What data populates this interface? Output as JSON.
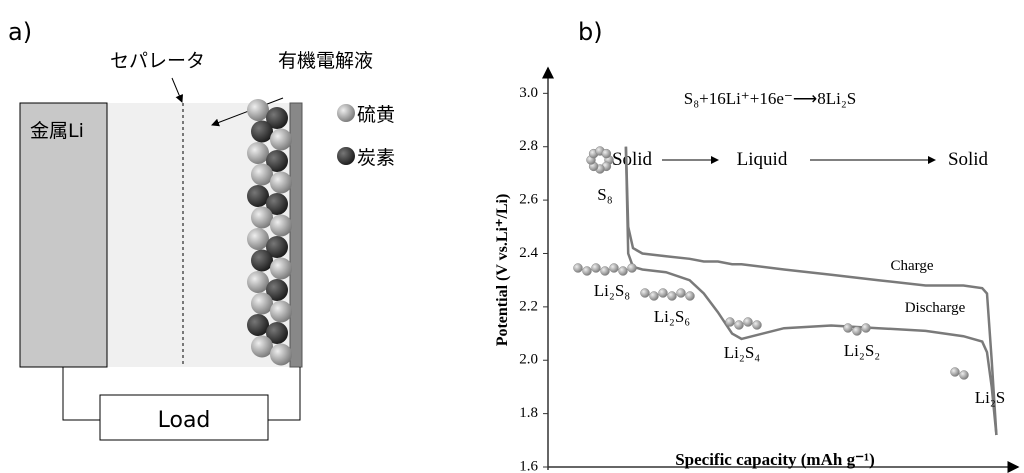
{
  "panel_a": {
    "label": "a)",
    "separator": "セパレータ",
    "electrolyte": "有機電解液",
    "anode": "金属Li",
    "legend": [
      "硫黄",
      "炭素"
    ],
    "load": "Load"
  },
  "chart_data": {
    "type": "line",
    "panel_label": "b)",
    "equation": "S₈+16Li⁺+16e⁻⟶8Li₂S",
    "phases": [
      "Solid",
      "Liquid",
      "Solid"
    ],
    "y_label": "Potential (V vs.Li⁺/Li)",
    "x_label": "Specific capacity (mAh g⁻¹)",
    "species": [
      "S₈",
      "Li₂S₈",
      "Li₂S₆",
      "Li₂S₄",
      "Li₂S₂",
      "Li₂S"
    ],
    "ylim": [
      1.6,
      3.05
    ],
    "yticks": [
      1.6,
      1.8,
      {
        "value": 2,
        "label": "2.0"
      },
      2.2,
      2.4,
      2.6,
      2.8,
      {
        "value": 3,
        "label": "3.0"
      }
    ],
    "xlim": [
      0,
      100
    ],
    "x": [
      16.5,
      17,
      18,
      20,
      25,
      30,
      33,
      36,
      39,
      41,
      50,
      60,
      70,
      80,
      88,
      92,
      93,
      94,
      95
    ],
    "series": [
      {
        "name": "Charge",
        "color": "#7a7a7a",
        "values": [
          2.8,
          2.5,
          2.42,
          2.4,
          2.39,
          2.38,
          2.37,
          2.37,
          2.36,
          2.36,
          2.34,
          2.32,
          2.3,
          2.28,
          2.28,
          2.27,
          2.25,
          2.0,
          1.72
        ]
      },
      {
        "name": "Discharge",
        "color": "#7a7a7a",
        "values": [
          2.8,
          2.4,
          2.35,
          2.34,
          2.33,
          2.3,
          2.25,
          2.18,
          2.1,
          2.08,
          2.12,
          2.13,
          2.12,
          2.11,
          2.09,
          2.07,
          2.03,
          1.9,
          1.72
        ]
      }
    ]
  }
}
